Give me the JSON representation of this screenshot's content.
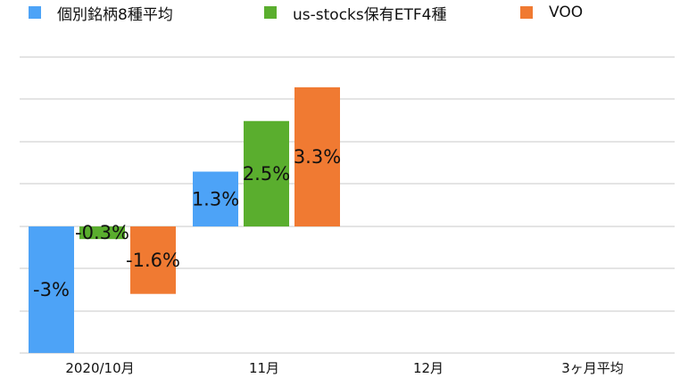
{
  "chart_data": {
    "type": "bar",
    "categories": [
      "2020/10月",
      "11月",
      "12月",
      "3ヶ月平均"
    ],
    "series": [
      {
        "name": "個別銘柄8種平均",
        "color": "#4DA3F7",
        "values": [
          -3,
          1.3,
          null,
          null
        ],
        "labels": [
          "-3%",
          "1.3%",
          "",
          ""
        ]
      },
      {
        "name": "us-stocks保有ETF4種",
        "color": "#5AAE2E",
        "values": [
          -0.3,
          2.5,
          null,
          null
        ],
        "labels": [
          "-0.3%",
          "2.5%",
          "",
          ""
        ]
      },
      {
        "name": "VOO",
        "color": "#F07A32",
        "values": [
          -1.6,
          3.3,
          null,
          null
        ],
        "labels": [
          "-1.6%",
          "3.3%",
          "",
          ""
        ]
      }
    ],
    "ylim": [
      -3,
      3.5
    ],
    "grid": true,
    "legend": "top"
  }
}
